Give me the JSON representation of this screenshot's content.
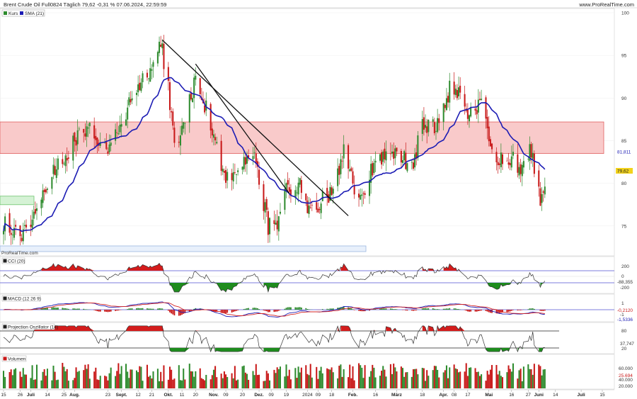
{
  "header": {
    "title": "Brent Crude Oil Full0824 Täglich 79,62 -0,31 % 07.06.2024, 22:59:59",
    "source": "www.ProRealTime.com"
  },
  "main": {
    "legend": [
      {
        "label": "Kurs",
        "color": "#2e8b2e"
      },
      {
        "label": "SMA (21)",
        "color": "#1c1cb4"
      }
    ],
    "watermark": "ProRealTime.com",
    "y_ticks": [
      "100",
      "95",
      "90",
      "85",
      "80",
      "75"
    ],
    "price_labels": {
      "sma": "81,811",
      "last": "79,62"
    }
  },
  "panels": {
    "cci": {
      "title": "CCI (20)",
      "ticks": [
        "200",
        "0",
        "-200"
      ],
      "value_label": "-88,355"
    },
    "macd": {
      "title": "MACD (12 26 9)",
      "ticks": [
        "1",
        "-1",
        "-0,2120"
      ],
      "value_labels": [
        "-0,2120",
        "-1,5336"
      ]
    },
    "proj": {
      "title": "Projection Oszillator (14)",
      "ticks": [
        "80",
        "20"
      ],
      "value_label": "37,747"
    },
    "volume": {
      "title": "Volumen",
      "ticks": [
        "60.000",
        "40.000",
        "20.000"
      ],
      "value_label": "25.694"
    }
  },
  "x_axis": [
    "15",
    "26",
    "Juli",
    "14",
    "25",
    "Aug.",
    "23",
    "Sept.",
    "12",
    "21",
    "Okt.",
    "11",
    "20",
    "Nov.",
    "09",
    "20",
    "Dez.",
    "09",
    "19",
    "2024",
    "09",
    "18",
    "Feb.",
    "16",
    "März",
    "18",
    "Apr.",
    "08",
    "17",
    "Mai",
    "16",
    "27",
    "Juni",
    "14",
    "Juli",
    "15"
  ],
  "colors": {
    "up": "#2e8b2e",
    "down": "#c81818",
    "sma": "#1c1cb4",
    "zone_fill": "#f9caca",
    "zone_border": "#e06060"
  },
  "chart_data": {
    "type": "candlestick",
    "title": "Brent Crude Oil Full0824 Täglich",
    "last_price": 79.62,
    "change_percent": -0.31,
    "timestamp": "07.06.2024, 22:59:59",
    "ylim": [
      71.5,
      100.5
    ],
    "sma_period": 21,
    "sma_last": 81.811,
    "resistance_zone": [
      83.5,
      87.2
    ],
    "support_zone_left": [
      77.5,
      78.5
    ],
    "trendlines": [
      {
        "from": [
          "2023-09-28",
          96.8
        ],
        "to": [
          "2024-01-29",
          76.2
        ]
      },
      {
        "from": [
          "2023-10-20",
          94.0
        ],
        "to": [
          "2023-12-21",
          78.8
        ]
      }
    ],
    "anchors": [
      [
        "2023-06-15",
        75.5
      ],
      [
        "2023-06-26",
        73.5
      ],
      [
        "2023-07-03",
        76.0
      ],
      [
        "2023-07-14",
        80.0
      ],
      [
        "2023-07-25",
        83.0
      ],
      [
        "2023-08-01",
        85.0
      ],
      [
        "2023-08-10",
        87.0
      ],
      [
        "2023-08-23",
        83.5
      ],
      [
        "2023-09-01",
        87.0
      ],
      [
        "2023-09-12",
        91.5
      ],
      [
        "2023-09-21",
        93.5
      ],
      [
        "2023-09-27",
        96.5
      ],
      [
        "2023-10-02",
        91.0
      ],
      [
        "2023-10-06",
        84.5
      ],
      [
        "2023-10-11",
        86.0
      ],
      [
        "2023-10-20",
        92.5
      ],
      [
        "2023-11-01",
        86.0
      ],
      [
        "2023-11-09",
        80.5
      ],
      [
        "2023-11-20",
        82.0
      ],
      [
        "2023-11-28",
        83.5
      ],
      [
        "2023-12-07",
        75.0
      ],
      [
        "2023-12-13",
        74.5
      ],
      [
        "2023-12-19",
        79.0
      ],
      [
        "2023-12-27",
        80.0
      ],
      [
        "2024-01-03",
        77.0
      ],
      [
        "2024-01-09",
        77.5
      ],
      [
        "2024-01-18",
        79.0
      ],
      [
        "2024-01-26",
        83.5
      ],
      [
        "2024-02-05",
        77.5
      ],
      [
        "2024-02-16",
        83.0
      ],
      [
        "2024-03-01",
        83.5
      ],
      [
        "2024-03-11",
        82.0
      ],
      [
        "2024-03-18",
        86.5
      ],
      [
        "2024-03-29",
        87.0
      ],
      [
        "2024-04-05",
        91.0
      ],
      [
        "2024-04-12",
        90.5
      ],
      [
        "2024-04-17",
        87.5
      ],
      [
        "2024-04-26",
        89.5
      ],
      [
        "2024-05-03",
        83.0
      ],
      [
        "2024-05-16",
        83.0
      ],
      [
        "2024-05-23",
        81.5
      ],
      [
        "2024-05-29",
        84.0
      ],
      [
        "2024-06-04",
        77.5
      ],
      [
        "2024-06-07",
        79.62
      ]
    ]
  }
}
